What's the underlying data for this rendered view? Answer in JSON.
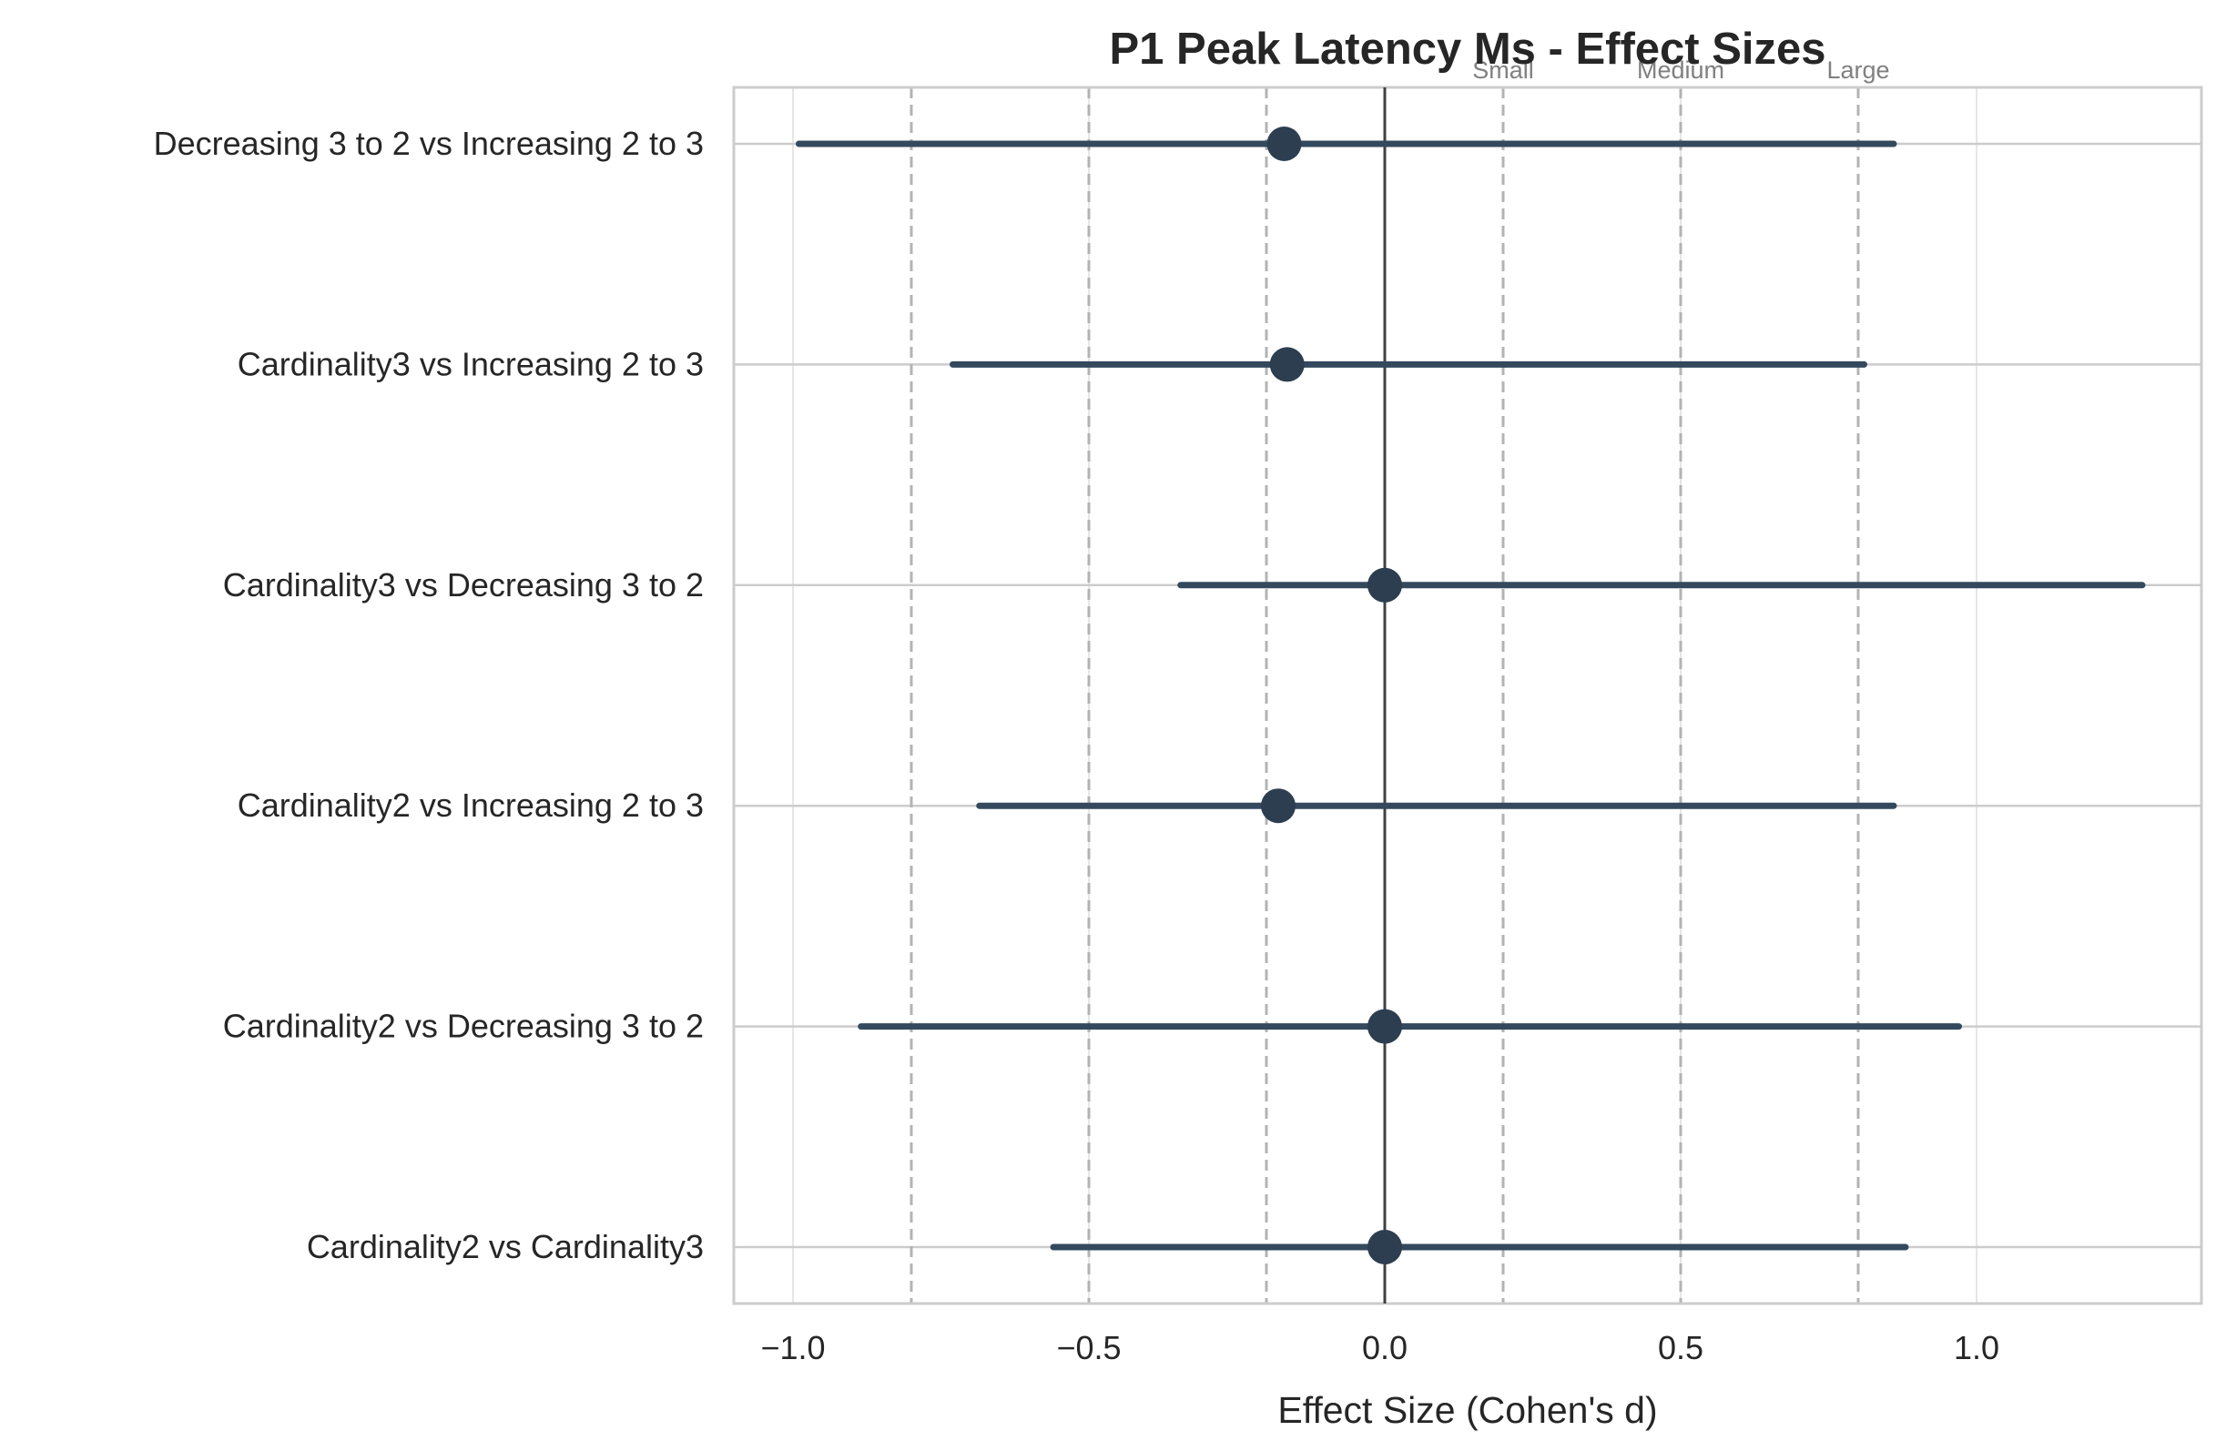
{
  "chart_data": {
    "type": "forest",
    "title": "P1 Peak Latency Ms - Effect Sizes",
    "xlabel": "Effect Size (Cohen's d)",
    "ylabel": "",
    "xlim": [
      -1.1,
      1.38
    ],
    "xticks": [
      -1.0,
      -0.5,
      0.0,
      0.5,
      1.0
    ],
    "xtick_labels": [
      "−1.0",
      "−0.5",
      "0.0",
      "0.5",
      "1.0"
    ],
    "grid": true,
    "zero_line": 0.0,
    "thresholds": [
      {
        "value": -0.8,
        "label": ""
      },
      {
        "value": -0.5,
        "label": ""
      },
      {
        "value": -0.2,
        "label": ""
      },
      {
        "value": 0.2,
        "label": "Small"
      },
      {
        "value": 0.5,
        "label": "Medium"
      },
      {
        "value": 0.8,
        "label": "Large"
      }
    ],
    "comparisons": [
      {
        "label": "Decreasing 3 to 2 vs Increasing 2 to 3",
        "d": -0.17,
        "ci": [
          -0.99,
          0.86
        ]
      },
      {
        "label": "Cardinality3 vs Increasing 2 to 3",
        "d": -0.165,
        "ci": [
          -0.73,
          0.81
        ]
      },
      {
        "label": "Cardinality3 vs Decreasing 3 to 2",
        "d": 0.0,
        "ci": [
          -0.345,
          1.28
        ]
      },
      {
        "label": "Cardinality2 vs Increasing 2 to 3",
        "d": -0.18,
        "ci": [
          -0.685,
          0.86
        ]
      },
      {
        "label": "Cardinality2 vs Decreasing 3 to 2",
        "d": 0.0,
        "ci": [
          -0.885,
          0.97
        ]
      },
      {
        "label": "Cardinality2 vs Cardinality3",
        "d": 0.0,
        "ci": [
          -0.56,
          0.88
        ]
      }
    ],
    "colors": {
      "point": "#2c3e50",
      "ci_line": "#34495e",
      "grid": "#e6e6e6",
      "cat_grid": "#cccccc",
      "spine": "#cccccc",
      "zero": "#404040",
      "threshold": "#b3b3b3"
    }
  }
}
